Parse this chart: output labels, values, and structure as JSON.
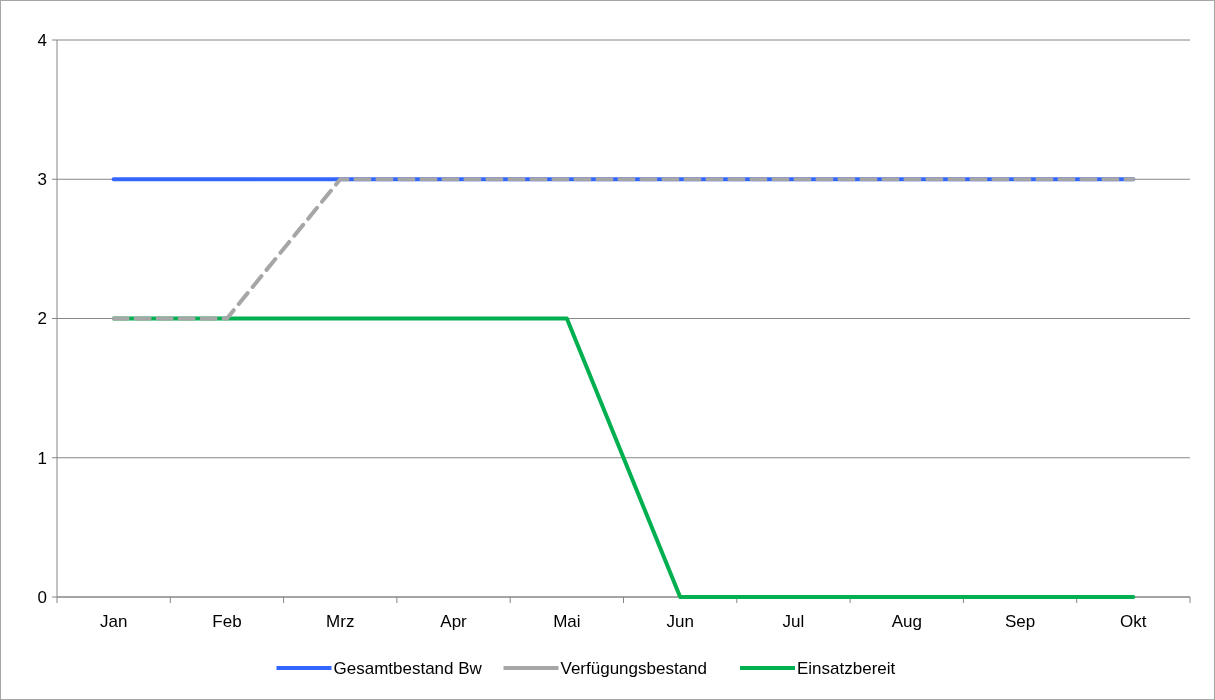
{
  "chart_data": {
    "type": "line",
    "categories": [
      "Jan",
      "Feb",
      "Mrz",
      "Apr",
      "Mai",
      "Jun",
      "Jul",
      "Aug",
      "Sep",
      "Okt"
    ],
    "series": [
      {
        "name": "Gesamtbestand Bw",
        "color": "#3366ff",
        "values": [
          3,
          3,
          3,
          3,
          3,
          3,
          3,
          3,
          3,
          3
        ]
      },
      {
        "name": "Verfügungsbestand",
        "color": "#a6a6a6",
        "line_style": "dashed",
        "values": [
          2,
          2,
          3,
          3,
          3,
          3,
          3,
          3,
          3,
          3
        ]
      },
      {
        "name": "Einsatzbereit",
        "color": "#00b050",
        "values": [
          2,
          2,
          2,
          2,
          2,
          0,
          0,
          0,
          0,
          0
        ]
      }
    ],
    "ylim": [
      0,
      4
    ],
    "yticks": [
      0,
      1,
      2,
      3,
      4
    ],
    "grid": "y",
    "legend": "bottom",
    "marker": "none",
    "line_style": "solid"
  }
}
